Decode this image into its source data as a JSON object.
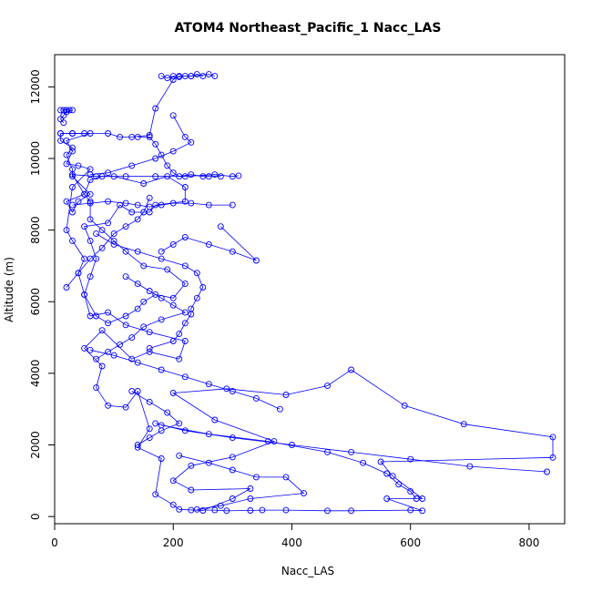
{
  "chart_data": {
    "type": "scatter",
    "title": "ATOM4 Northeast_Pacific_1 Nacc_LAS",
    "xlabel": "Nacc_LAS",
    "ylabel": "Altitude (m)",
    "xlim": [
      0,
      860
    ],
    "ylim": [
      -200,
      12900
    ],
    "xticks": [
      0,
      200,
      400,
      600,
      800
    ],
    "yticks": [
      0,
      2000,
      4000,
      6000,
      8000,
      10000,
      12000
    ],
    "grid": false,
    "color": "#0000ff",
    "series": [
      {
        "mode": "lines+markers",
        "points": [
          [
            230,
            180
          ],
          [
            270,
            180
          ],
          [
            290,
            160
          ],
          [
            330,
            170
          ],
          [
            350,
            180
          ],
          [
            390,
            180
          ],
          [
            460,
            160
          ],
          [
            500,
            160
          ],
          [
            600,
            180
          ],
          [
            620,
            160
          ],
          [
            560,
            500
          ],
          [
            620,
            500
          ],
          [
            570,
            1130
          ],
          [
            550,
            1530
          ],
          [
            840,
            1650
          ],
          [
            840,
            2220
          ],
          [
            690,
            2580
          ],
          [
            590,
            3100
          ],
          [
            500,
            4100
          ],
          [
            460,
            3650
          ],
          [
            390,
            3400
          ],
          [
            290,
            3570
          ],
          [
            200,
            3450
          ],
          [
            270,
            2700
          ],
          [
            370,
            2100
          ],
          [
            300,
            1660
          ],
          [
            230,
            1420
          ],
          [
            200,
            1000
          ],
          [
            230,
            740
          ],
          [
            330,
            780
          ],
          [
            300,
            500
          ],
          [
            250,
            170
          ],
          [
            210,
            200
          ],
          [
            200,
            330
          ],
          [
            170,
            620
          ],
          [
            180,
            1620
          ],
          [
            140,
            1930
          ],
          [
            160,
            2450
          ],
          [
            140,
            3500
          ],
          [
            120,
            3050
          ],
          [
            90,
            3100
          ],
          [
            70,
            3600
          ],
          [
            80,
            4200
          ],
          [
            50,
            4700
          ],
          [
            80,
            5200
          ],
          [
            130,
            4400
          ],
          [
            160,
            4600
          ],
          [
            210,
            4400
          ],
          [
            220,
            4900
          ],
          [
            160,
            5150
          ],
          [
            120,
            5350
          ],
          [
            90,
            5700
          ],
          [
            60,
            5600
          ],
          [
            50,
            6200
          ],
          [
            60,
            6700
          ],
          [
            70,
            7200
          ],
          [
            60,
            7700
          ],
          [
            50,
            8100
          ],
          [
            90,
            8200
          ],
          [
            110,
            8700
          ],
          [
            130,
            8500
          ],
          [
            160,
            8500
          ],
          [
            170,
            8700
          ],
          [
            220,
            8800
          ],
          [
            220,
            9200
          ],
          [
            190,
            9500
          ],
          [
            150,
            9300
          ],
          [
            100,
            9500
          ],
          [
            70,
            9500
          ],
          [
            30,
            9550
          ],
          [
            50,
            9000
          ],
          [
            20,
            8800
          ],
          [
            30,
            8500
          ],
          [
            40,
            8800
          ],
          [
            60,
            9000
          ],
          [
            30,
            9500
          ],
          [
            30,
            9700
          ],
          [
            20,
            10100
          ],
          [
            30,
            10300
          ],
          [
            10,
            10500
          ],
          [
            10,
            10700
          ],
          [
            30,
            10700
          ],
          [
            50,
            10700
          ],
          [
            90,
            10700
          ],
          [
            110,
            10600
          ],
          [
            130,
            10600
          ],
          [
            160,
            10650
          ],
          [
            170,
            11400
          ],
          [
            200,
            12200
          ],
          [
            210,
            12300
          ],
          [
            230,
            12300
          ],
          [
            260,
            12350
          ],
          [
            270,
            12300
          ]
        ]
      },
      {
        "mode": "lines+markers",
        "points": [
          [
            10,
            10700
          ],
          [
            30,
            10700
          ],
          [
            60,
            10700
          ],
          [
            20,
            10500
          ],
          [
            30,
            10200
          ],
          [
            20,
            9850
          ],
          [
            40,
            9800
          ],
          [
            60,
            9700
          ],
          [
            30,
            9200
          ],
          [
            20,
            8000
          ],
          [
            30,
            7700
          ],
          [
            50,
            7200
          ],
          [
            40,
            6800
          ],
          [
            50,
            6200
          ],
          [
            70,
            5600
          ],
          [
            90,
            5400
          ],
          [
            120,
            5600
          ],
          [
            140,
            5800
          ],
          [
            150,
            6000
          ],
          [
            170,
            6200
          ],
          [
            200,
            6100
          ],
          [
            220,
            6500
          ],
          [
            190,
            6900
          ],
          [
            150,
            7000
          ],
          [
            120,
            7400
          ],
          [
            100,
            7700
          ],
          [
            80,
            8000
          ],
          [
            60,
            8300
          ],
          [
            60,
            8800
          ],
          [
            50,
            9000
          ],
          [
            60,
            9400
          ],
          [
            80,
            9500
          ],
          [
            120,
            9500
          ],
          [
            170,
            9500
          ],
          [
            220,
            9500
          ],
          [
            270,
            9550
          ],
          [
            300,
            9500
          ],
          [
            310,
            9520
          ]
        ]
      },
      {
        "mode": "lines+markers",
        "points": [
          [
            10,
            11350
          ],
          [
            15,
            11350
          ],
          [
            20,
            11350
          ],
          [
            25,
            11350
          ],
          [
            30,
            11350
          ],
          [
            20,
            11300
          ],
          [
            15,
            11200
          ],
          [
            10,
            11100
          ],
          [
            15,
            11000
          ]
        ]
      },
      {
        "mode": "lines+markers",
        "points": [
          [
            180,
            12300
          ],
          [
            190,
            12250
          ],
          [
            200,
            12300
          ],
          [
            210,
            12280
          ],
          [
            220,
            12300
          ],
          [
            230,
            12300
          ],
          [
            240,
            12350
          ],
          [
            250,
            12300
          ]
        ]
      },
      {
        "mode": "lines+markers",
        "points": [
          [
            200,
            11200
          ],
          [
            220,
            10600
          ],
          [
            230,
            10450
          ],
          [
            200,
            10200
          ],
          [
            170,
            10000
          ],
          [
            130,
            9800
          ],
          [
            90,
            9600
          ],
          [
            60,
            9550
          ]
        ]
      },
      {
        "mode": "lines+markers",
        "points": [
          [
            140,
            10600
          ],
          [
            160,
            10600
          ],
          [
            170,
            10400
          ],
          [
            180,
            10100
          ],
          [
            190,
            9800
          ],
          [
            200,
            9600
          ],
          [
            210,
            9500
          ],
          [
            230,
            9550
          ],
          [
            250,
            9500
          ],
          [
            260,
            9500
          ],
          [
            280,
            9500
          ]
        ]
      },
      {
        "mode": "lines+markers",
        "points": [
          [
            30,
            8700
          ],
          [
            60,
            8750
          ],
          [
            90,
            8800
          ],
          [
            120,
            8750
          ],
          [
            140,
            8700
          ],
          [
            160,
            8650
          ],
          [
            180,
            8700
          ],
          [
            200,
            8750
          ],
          [
            230,
            8750
          ],
          [
            260,
            8700
          ],
          [
            300,
            8700
          ]
        ]
      },
      {
        "mode": "lines+markers",
        "points": [
          [
            70,
            7900
          ],
          [
            100,
            7600
          ],
          [
            140,
            7400
          ],
          [
            180,
            7200
          ],
          [
            220,
            7000
          ],
          [
            240,
            6800
          ],
          [
            250,
            6400
          ],
          [
            240,
            6100
          ],
          [
            230,
            5800
          ],
          [
            230,
            5650
          ],
          [
            220,
            5400
          ],
          [
            210,
            5100
          ],
          [
            200,
            4900
          ],
          [
            160,
            4700
          ]
        ]
      },
      {
        "mode": "lines+markers",
        "points": [
          [
            280,
            8100
          ],
          [
            340,
            7150
          ],
          [
            300,
            7400
          ],
          [
            260,
            7600
          ],
          [
            220,
            7800
          ],
          [
            200,
            7600
          ],
          [
            180,
            7400
          ]
        ]
      },
      {
        "mode": "lines+markers",
        "points": [
          [
            160,
            8900
          ],
          [
            150,
            8500
          ],
          [
            140,
            8300
          ],
          [
            120,
            8100
          ],
          [
            100,
            7900
          ],
          [
            80,
            7500
          ],
          [
            60,
            7200
          ],
          [
            40,
            6800
          ],
          [
            20,
            6400
          ]
        ]
      },
      {
        "mode": "lines+markers",
        "points": [
          [
            120,
            6700
          ],
          [
            140,
            6500
          ],
          [
            160,
            6300
          ],
          [
            180,
            6100
          ],
          [
            200,
            5900
          ],
          [
            220,
            5700
          ],
          [
            180,
            5500
          ],
          [
            150,
            5300
          ],
          [
            130,
            5000
          ],
          [
            110,
            4800
          ],
          [
            90,
            4600
          ],
          [
            70,
            4400
          ]
        ]
      },
      {
        "mode": "lines+markers",
        "points": [
          [
            60,
            4650
          ],
          [
            100,
            4500
          ],
          [
            140,
            4300
          ],
          [
            180,
            4100
          ],
          [
            220,
            3900
          ],
          [
            260,
            3700
          ],
          [
            300,
            3500
          ],
          [
            340,
            3300
          ],
          [
            380,
            3000
          ]
        ]
      },
      {
        "mode": "lines+markers",
        "points": [
          [
            130,
            3500
          ],
          [
            160,
            3200
          ],
          [
            190,
            2900
          ],
          [
            210,
            2600
          ],
          [
            180,
            2400
          ],
          [
            160,
            2200
          ],
          [
            140,
            2000
          ]
        ]
      },
      {
        "mode": "lines+markers",
        "points": [
          [
            170,
            2600
          ],
          [
            220,
            2400
          ],
          [
            300,
            2200
          ],
          [
            400,
            2000
          ],
          [
            500,
            1800
          ],
          [
            600,
            1600
          ],
          [
            700,
            1400
          ],
          [
            830,
            1250
          ]
        ]
      },
      {
        "mode": "lines+markers",
        "points": [
          [
            180,
            2550
          ],
          [
            260,
            2300
          ],
          [
            360,
            2100
          ],
          [
            460,
            1800
          ],
          [
            520,
            1500
          ],
          [
            560,
            1200
          ],
          [
            580,
            900
          ],
          [
            600,
            700
          ],
          [
            610,
            500
          ]
        ]
      },
      {
        "mode": "lines+markers",
        "points": [
          [
            210,
            1700
          ],
          [
            260,
            1500
          ],
          [
            300,
            1300
          ],
          [
            340,
            1100
          ],
          [
            390,
            1100
          ],
          [
            420,
            650
          ],
          [
            330,
            500
          ],
          [
            280,
            300
          ],
          [
            240,
            200
          ]
        ]
      }
    ]
  }
}
